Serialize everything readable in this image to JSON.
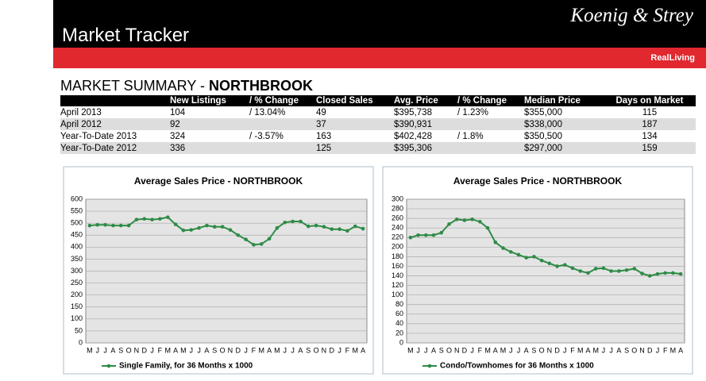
{
  "header": {
    "logo": "Koenig & Strey",
    "title": "Market Tracker",
    "brand": "RealLiving"
  },
  "summary": {
    "title": "MARKET SUMMARY - ",
    "location": "NORTHBROOK"
  },
  "table": {
    "headers": [
      "New Listings",
      "/ % Change",
      "Closed Sales",
      "Avg. Price",
      "/ % Change",
      "Median Price",
      "Days on Market"
    ],
    "rows": [
      [
        "April 2013",
        "104",
        "/ 13.04%",
        "49",
        "$395,738",
        "/ 1.23%",
        "$355,000",
        "115"
      ],
      [
        "April 2012",
        "92",
        null,
        "37",
        "$390,931",
        null,
        "$338,000",
        "187"
      ],
      [
        "Year-To-Date 2013",
        "324",
        "/ -3.57%",
        "163",
        "$402,428",
        "/ 1.8%",
        "$350,500",
        "134"
      ],
      [
        "Year-To-Date 2012",
        "336",
        null,
        "125",
        "$395,306",
        null,
        "$297,000",
        "159"
      ]
    ]
  },
  "chart_data": [
    {
      "type": "line",
      "title": "Average Sales Price - NORTHBROOK",
      "categories": [
        "M",
        "J",
        "J",
        "A",
        "S",
        "O",
        "N",
        "D",
        "J",
        "F",
        "M",
        "A",
        "M",
        "J",
        "J",
        "A",
        "S",
        "O",
        "N",
        "D",
        "J",
        "F",
        "M",
        "A",
        "M",
        "J",
        "J",
        "A",
        "S",
        "O",
        "N",
        "D",
        "J",
        "F",
        "M",
        "A"
      ],
      "series": [
        {
          "name": "Single Family,  for 36 Months x 1000",
          "color": "#2e8b46",
          "values": [
            490,
            493,
            493,
            490,
            490,
            490,
            515,
            518,
            515,
            518,
            525,
            495,
            470,
            472,
            480,
            490,
            485,
            485,
            472,
            450,
            432,
            410,
            413,
            435,
            480,
            503,
            507,
            507,
            487,
            490,
            485,
            475,
            475,
            468,
            487,
            477
          ]
        }
      ],
      "ylim": [
        0,
        600
      ],
      "yticks": [
        0,
        50,
        100,
        150,
        200,
        250,
        300,
        350,
        400,
        450,
        500,
        550,
        600
      ],
      "grid": true
    },
    {
      "type": "line",
      "title": "Average Sales Price - NORTHBROOK",
      "categories": [
        "M",
        "J",
        "J",
        "A",
        "S",
        "O",
        "N",
        "D",
        "J",
        "F",
        "M",
        "A",
        "M",
        "J",
        "J",
        "A",
        "S",
        "O",
        "N",
        "D",
        "J",
        "F",
        "M",
        "A",
        "M",
        "J",
        "J",
        "A",
        "S",
        "O",
        "N",
        "D",
        "J",
        "F",
        "M",
        "A"
      ],
      "series": [
        {
          "name": "Condo/Townhomes for 36 Months x 1000",
          "color": "#2e8b46",
          "values": [
            220,
            225,
            225,
            225,
            230,
            248,
            258,
            256,
            258,
            253,
            240,
            210,
            198,
            190,
            184,
            178,
            180,
            172,
            166,
            160,
            163,
            156,
            150,
            146,
            155,
            156,
            150,
            150,
            152,
            155,
            145,
            140,
            144,
            146,
            146,
            144
          ]
        }
      ],
      "ylim": [
        0,
        300
      ],
      "yticks": [
        0,
        20,
        40,
        60,
        80,
        100,
        120,
        140,
        160,
        180,
        200,
        220,
        240,
        260,
        280,
        300
      ],
      "grid": true
    }
  ]
}
